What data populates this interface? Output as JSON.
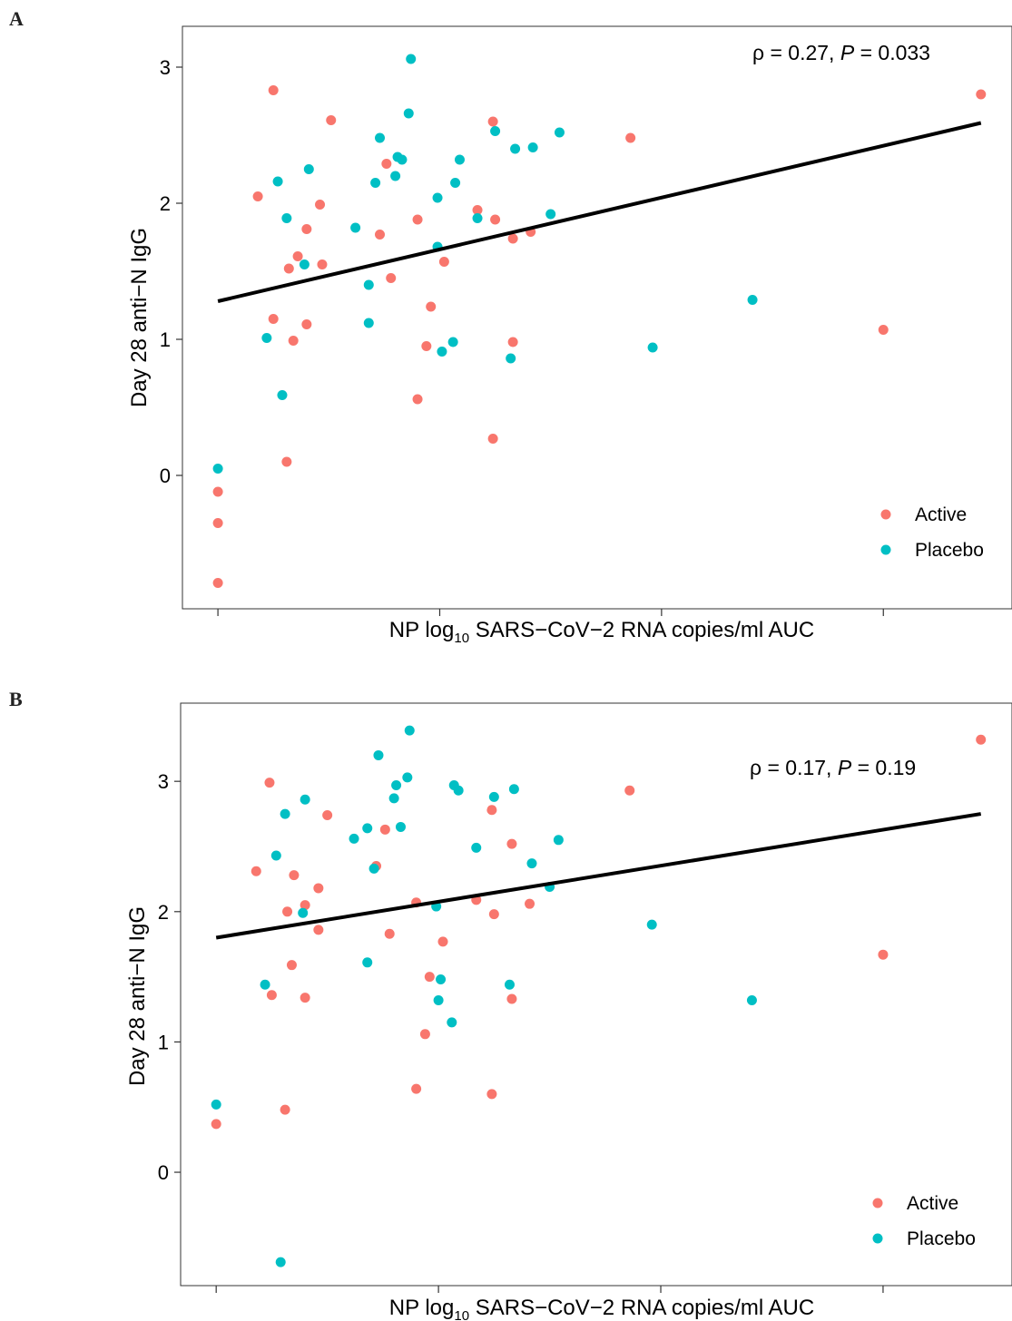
{
  "panels": [
    {
      "letter": "A",
      "annotation": {
        "rho": "ρ = 0.27, ",
        "p_symbol": "P",
        "p_value": " = 0.033"
      },
      "ylabel": "Day 28 anti−N IgG",
      "xlabel": {
        "prefix": "NP log",
        "sub": "10",
        "suffix": " SARS−CoV−2 RNA copies/ml AUC"
      }
    },
    {
      "letter": "B",
      "annotation": {
        "rho": "ρ = 0.17, ",
        "p_symbol": "P",
        "p_value": " = 0.19"
      },
      "ylabel": "Day 28 anti−N IgG",
      "xlabel": {
        "prefix": "NP log",
        "sub": "10",
        "suffix": " SARS−CoV−2 RNA copies/ml AUC"
      }
    }
  ],
  "chart_data": [
    {
      "type": "scatter",
      "ylabel": "Day 28 anti−N IgG",
      "xlabel": "NP log10 SARS−CoV−2 RNA copies/ml AUC",
      "xlim": [
        -0.16,
        3.58
      ],
      "ylim": [
        -0.98,
        3.3
      ],
      "x_ticks": [
        0,
        1,
        2,
        3
      ],
      "x_tick_labels": [
        "",
        "",
        "",
        ""
      ],
      "y_ticks": [
        0,
        1,
        2,
        3
      ],
      "y_tick_labels": [
        "0",
        "1",
        "2",
        "3"
      ],
      "grid": false,
      "legend_position": "bottom-right",
      "colors": {
        "Active": "#F8766D",
        "Placebo": "#00BFC4"
      },
      "series": [
        {
          "name": "Active",
          "points": [
            [
              0.0,
              -0.12
            ],
            [
              0.0,
              -0.35
            ],
            [
              0.0,
              -0.79
            ],
            [
              0.18,
              2.05
            ],
            [
              0.25,
              2.83
            ],
            [
              0.25,
              1.15
            ],
            [
              0.31,
              0.1
            ],
            [
              0.32,
              1.52
            ],
            [
              0.34,
              0.99
            ],
            [
              0.36,
              1.61
            ],
            [
              0.4,
              1.81
            ],
            [
              0.4,
              1.11
            ],
            [
              0.46,
              1.99
            ],
            [
              0.47,
              1.55
            ],
            [
              0.51,
              2.61
            ],
            [
              0.73,
              1.77
            ],
            [
              0.76,
              2.29
            ],
            [
              0.78,
              1.45
            ],
            [
              0.9,
              1.88
            ],
            [
              0.9,
              0.56
            ],
            [
              0.94,
              0.95
            ],
            [
              0.96,
              1.24
            ],
            [
              1.02,
              1.57
            ],
            [
              1.17,
              1.95
            ],
            [
              1.24,
              0.27
            ],
            [
              1.24,
              2.6
            ],
            [
              1.25,
              1.88
            ],
            [
              1.33,
              1.74
            ],
            [
              1.33,
              0.98
            ],
            [
              1.41,
              1.79
            ],
            [
              1.86,
              2.48
            ],
            [
              3.0,
              1.07
            ],
            [
              3.44,
              2.8
            ]
          ]
        },
        {
          "name": "Placebo",
          "points": [
            [
              0.0,
              0.05
            ],
            [
              0.22,
              1.01
            ],
            [
              0.27,
              2.16
            ],
            [
              0.29,
              0.59
            ],
            [
              0.31,
              1.89
            ],
            [
              0.39,
              1.55
            ],
            [
              0.41,
              2.25
            ],
            [
              0.62,
              1.82
            ],
            [
              0.68,
              1.4
            ],
            [
              0.68,
              1.12
            ],
            [
              0.71,
              2.15
            ],
            [
              0.73,
              2.48
            ],
            [
              0.8,
              2.2
            ],
            [
              0.81,
              2.34
            ],
            [
              0.83,
              2.32
            ],
            [
              0.86,
              2.66
            ],
            [
              0.87,
              3.06
            ],
            [
              0.99,
              2.04
            ],
            [
              0.99,
              1.68
            ],
            [
              1.01,
              0.91
            ],
            [
              1.06,
              0.98
            ],
            [
              1.07,
              2.15
            ],
            [
              1.09,
              2.32
            ],
            [
              1.17,
              1.89
            ],
            [
              1.25,
              2.53
            ],
            [
              1.32,
              0.86
            ],
            [
              1.34,
              2.4
            ],
            [
              1.42,
              2.41
            ],
            [
              1.5,
              1.92
            ],
            [
              1.54,
              2.52
            ],
            [
              1.96,
              0.94
            ],
            [
              2.41,
              1.29
            ]
          ]
        }
      ],
      "fit_line": {
        "x": [
          0.0,
          3.44
        ],
        "y": [
          1.28,
          2.59
        ]
      }
    },
    {
      "type": "scatter",
      "ylabel": "Day 28 anti−N IgG",
      "xlabel": "NP log10 SARS−CoV−2 RNA copies/ml AUC",
      "xlim": [
        -0.16,
        3.58
      ],
      "ylim": [
        -0.87,
        3.6
      ],
      "x_ticks": [
        0,
        1,
        2,
        3
      ],
      "x_tick_labels": [
        "",
        "",
        "",
        ""
      ],
      "y_ticks": [
        0,
        1,
        2,
        3
      ],
      "y_tick_labels": [
        "0",
        "1",
        "2",
        "3"
      ],
      "grid": false,
      "legend_position": "bottom-right",
      "colors": {
        "Active": "#F8766D",
        "Placebo": "#00BFC4"
      },
      "series": [
        {
          "name": "Active",
          "points": [
            [
              0.0,
              0.37
            ],
            [
              0.18,
              2.31
            ],
            [
              0.24,
              2.99
            ],
            [
              0.25,
              1.36
            ],
            [
              0.31,
              0.48
            ],
            [
              0.32,
              2.0
            ],
            [
              0.34,
              1.59
            ],
            [
              0.35,
              2.28
            ],
            [
              0.4,
              2.05
            ],
            [
              0.4,
              1.34
            ],
            [
              0.46,
              2.18
            ],
            [
              0.46,
              1.86
            ],
            [
              0.5,
              2.74
            ],
            [
              0.72,
              2.35
            ],
            [
              0.76,
              2.63
            ],
            [
              0.78,
              1.83
            ],
            [
              0.9,
              2.07
            ],
            [
              0.9,
              0.64
            ],
            [
              0.94,
              1.06
            ],
            [
              0.96,
              1.5
            ],
            [
              1.02,
              1.77
            ],
            [
              1.17,
              2.09
            ],
            [
              1.24,
              2.78
            ],
            [
              1.25,
              1.98
            ],
            [
              1.24,
              0.6
            ],
            [
              1.33,
              2.52
            ],
            [
              1.33,
              1.33
            ],
            [
              1.41,
              2.06
            ],
            [
              1.86,
              2.93
            ],
            [
              3.0,
              1.67
            ],
            [
              3.44,
              3.32
            ]
          ]
        },
        {
          "name": "Placebo",
          "points": [
            [
              0.0,
              0.52
            ],
            [
              0.22,
              1.44
            ],
            [
              0.27,
              2.43
            ],
            [
              0.29,
              -0.69
            ],
            [
              0.31,
              2.75
            ],
            [
              0.39,
              1.99
            ],
            [
              0.4,
              2.86
            ],
            [
              0.62,
              2.56
            ],
            [
              0.68,
              2.64
            ],
            [
              0.68,
              1.61
            ],
            [
              0.71,
              2.33
            ],
            [
              0.73,
              3.2
            ],
            [
              0.8,
              2.87
            ],
            [
              0.81,
              2.97
            ],
            [
              0.83,
              2.65
            ],
            [
              0.86,
              3.03
            ],
            [
              0.87,
              3.39
            ],
            [
              0.99,
              2.04
            ],
            [
              1.0,
              1.32
            ],
            [
              1.01,
              1.48
            ],
            [
              1.06,
              1.15
            ],
            [
              1.07,
              2.97
            ],
            [
              1.09,
              2.93
            ],
            [
              1.17,
              2.49
            ],
            [
              1.25,
              2.88
            ],
            [
              1.32,
              1.44
            ],
            [
              1.34,
              2.94
            ],
            [
              1.42,
              2.37
            ],
            [
              1.5,
              2.19
            ],
            [
              1.54,
              2.55
            ],
            [
              1.96,
              1.9
            ],
            [
              2.41,
              1.32
            ]
          ]
        }
      ],
      "fit_line": {
        "x": [
          0.0,
          3.44
        ],
        "y": [
          1.8,
          2.75
        ]
      }
    }
  ]
}
